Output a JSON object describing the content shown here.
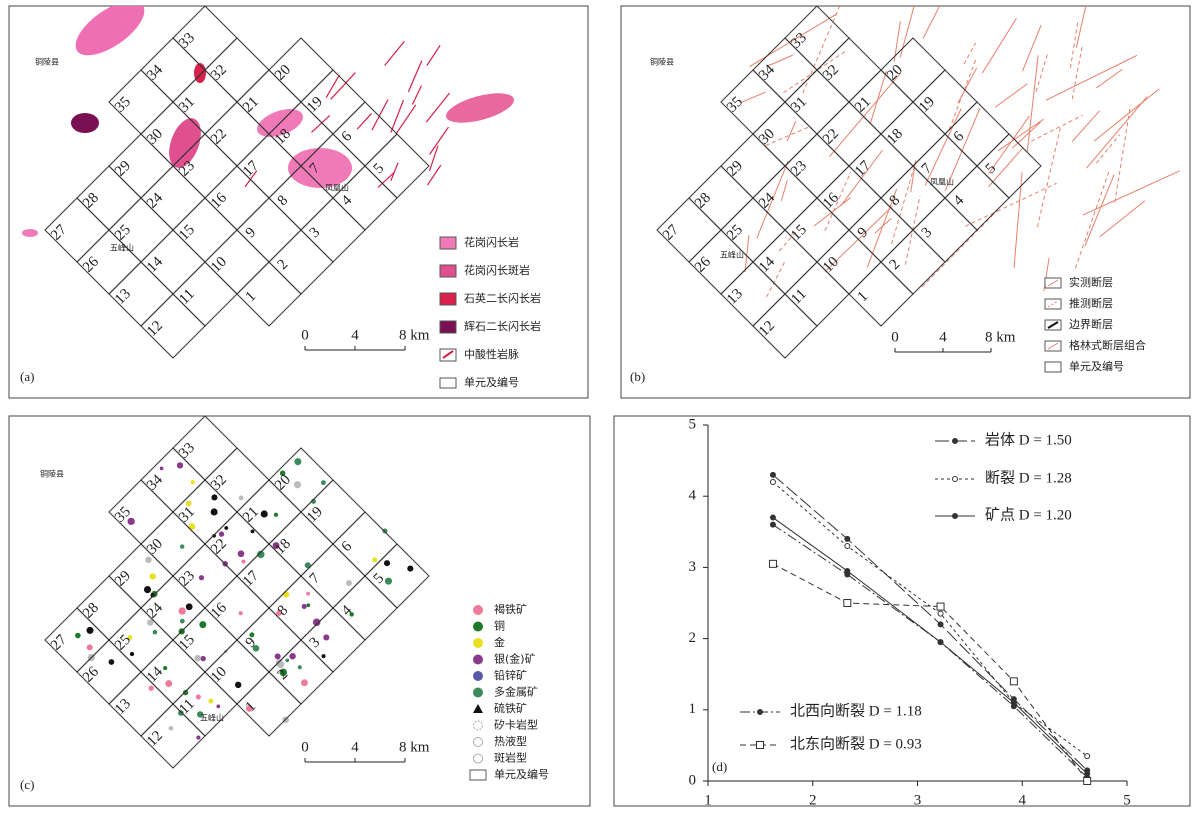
{
  "panel_a": {
    "label": "(a)",
    "places": [
      "铜陵县",
      "凤凰山",
      "五峰山"
    ],
    "units": [
      1,
      2,
      3,
      4,
      5,
      6,
      7,
      8,
      9,
      10,
      11,
      12,
      13,
      14,
      15,
      16,
      17,
      18,
      19,
      20,
      21,
      22,
      23,
      24,
      25,
      26,
      27,
      28,
      29,
      30,
      31,
      32,
      33,
      34,
      35
    ],
    "scale": [
      "0",
      "4",
      "8 km"
    ],
    "legend": [
      "花岗闪长岩",
      "花岗闪长斑岩",
      "石英二长闪长岩",
      "辉石二长闪长岩",
      "中酸性岩脉",
      "单元及编号"
    ]
  },
  "panel_b": {
    "label": "(b)",
    "places": [
      "铜陵县",
      "凤凰山",
      "五峰山"
    ],
    "units": [
      1,
      2,
      3,
      4,
      5,
      6,
      7,
      8,
      9,
      10,
      11,
      12,
      13,
      14,
      15,
      16,
      17,
      18,
      19,
      20,
      21,
      22,
      23,
      24,
      25,
      26,
      27,
      28,
      29,
      30,
      31,
      32,
      33,
      34,
      35
    ],
    "scale": [
      "0",
      "4",
      "8 km"
    ],
    "legend": [
      "实测断层",
      "推测断层",
      "边界断层",
      "格林式断层组合",
      "单元及编号"
    ]
  },
  "panel_c": {
    "label": "(c)",
    "places": [
      "铜陵县",
      "五峰山"
    ],
    "units": [
      1,
      2,
      3,
      4,
      5,
      6,
      7,
      8,
      9,
      10,
      11,
      12,
      13,
      14,
      15,
      16,
      17,
      18,
      19,
      20,
      21,
      22,
      23,
      24,
      25,
      26,
      27,
      28,
      29,
      30,
      31,
      32,
      33,
      34,
      35
    ],
    "scale": [
      "0",
      "4",
      "8 km"
    ],
    "legend": [
      "褐铁矿",
      "铜",
      "金",
      "银(金)矿",
      "铅锌矿",
      "多金属矿",
      "硫铁矿",
      "矽卡岩型",
      "热液型",
      "斑岩型",
      "单元及编号"
    ]
  },
  "chart_data": {
    "type": "line",
    "label": "(d)",
    "x": [
      1.62,
      2.33,
      3.22,
      3.92,
      4.62
    ],
    "xlim": [
      1,
      5
    ],
    "ylim": [
      0,
      5
    ],
    "xticks": [
      1,
      2,
      3,
      4,
      5
    ],
    "yticks": [
      0,
      1,
      2,
      3,
      4,
      5
    ],
    "series": [
      {
        "name": "岩体 D = 1.50",
        "color": "#333333",
        "dash": "14 4",
        "marker": "dot",
        "values": [
          4.3,
          3.4,
          2.2,
          1.15,
          0.15
        ]
      },
      {
        "name": "断裂 D = 1.28",
        "color": "#333333",
        "dash": "3 3",
        "marker": "ring",
        "values": [
          4.2,
          3.3,
          2.35,
          1.1,
          0.35
        ]
      },
      {
        "name": "矿点 D = 1.20",
        "color": "#333333",
        "dash": "none",
        "marker": "dot",
        "values": [
          3.7,
          2.95,
          1.95,
          1.1,
          0.1
        ]
      },
      {
        "name": "北西向断裂 D = 1.18",
        "color": "#333333",
        "dash": "10 3 2 3",
        "marker": "dot",
        "values": [
          3.6,
          2.9,
          1.95,
          1.05,
          0.05
        ]
      },
      {
        "name": "北东向断裂 D = 0.93",
        "color": "#333333",
        "dash": "6 4",
        "marker": "square",
        "values": [
          3.05,
          2.5,
          2.45,
          1.4,
          0
        ]
      }
    ]
  }
}
